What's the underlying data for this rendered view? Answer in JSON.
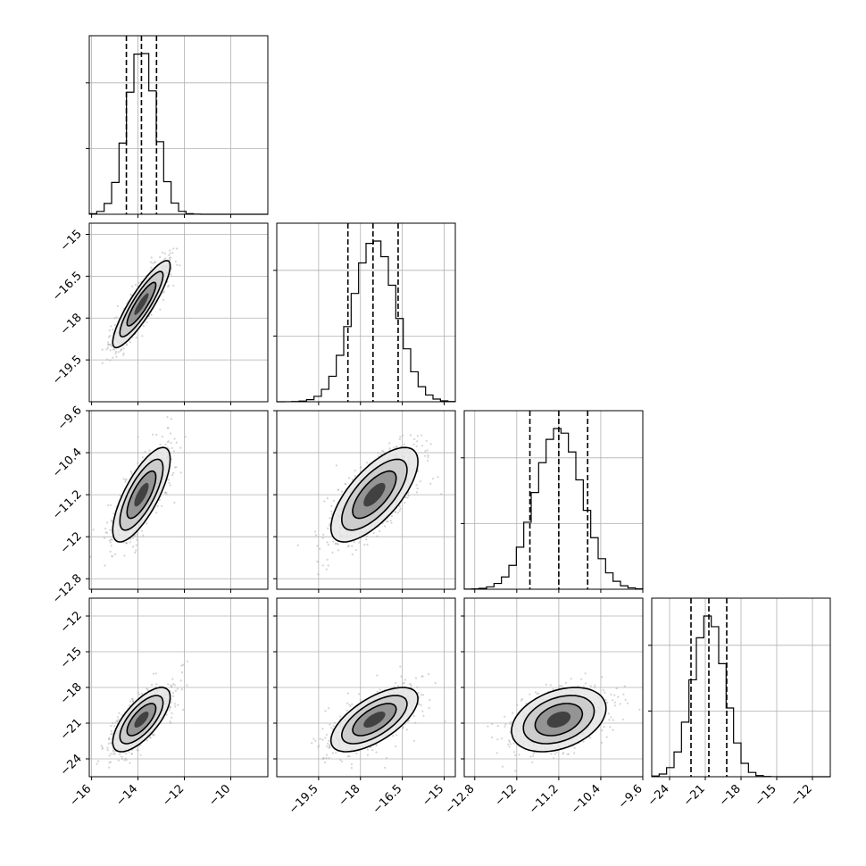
{
  "chart_data": {
    "type": "corner",
    "parameters": [
      {
        "ticks": [
          -16,
          -14,
          -12,
          -10
        ],
        "range": [
          -16.1,
          -8.4
        ],
        "mean": -13.85,
        "std": 0.62,
        "quantiles": [
          -14.5,
          -13.85,
          -13.2
        ]
      },
      {
        "ticks": [
          -19.5,
          -18.0,
          -16.5,
          -15.0
        ],
        "range": [
          -21.0,
          -14.6
        ],
        "mean": -17.5,
        "std": 0.78,
        "quantiles": [
          -18.45,
          -17.55,
          -16.65
        ]
      },
      {
        "ticks": [
          -12.8,
          -12.0,
          -11.2,
          -10.4,
          -9.6
        ],
        "range": [
          -13.0,
          -9.6
        ],
        "mean": -11.2,
        "std": 0.45,
        "quantiles": [
          -11.75,
          -11.2,
          -10.65
        ]
      },
      {
        "ticks": [
          -24,
          -21,
          -18,
          -15,
          -12
        ],
        "range": [
          -25.5,
          -10.5
        ],
        "mean": -20.7,
        "std": 1.35,
        "quantiles": [
          -22.2,
          -20.7,
          -19.2
        ]
      }
    ],
    "correlations": [
      [
        1.0,
        0.88,
        0.75,
        0.7
      ],
      [
        0.88,
        1.0,
        0.7,
        0.65
      ],
      [
        0.75,
        0.7,
        1.0,
        0.35
      ],
      [
        0.7,
        0.65,
        0.35,
        1.0
      ]
    ],
    "contour_levels_sigma": [
      0.5,
      1.0,
      1.5,
      2.0
    ],
    "grid": true,
    "quantile_lines": "dashed"
  }
}
